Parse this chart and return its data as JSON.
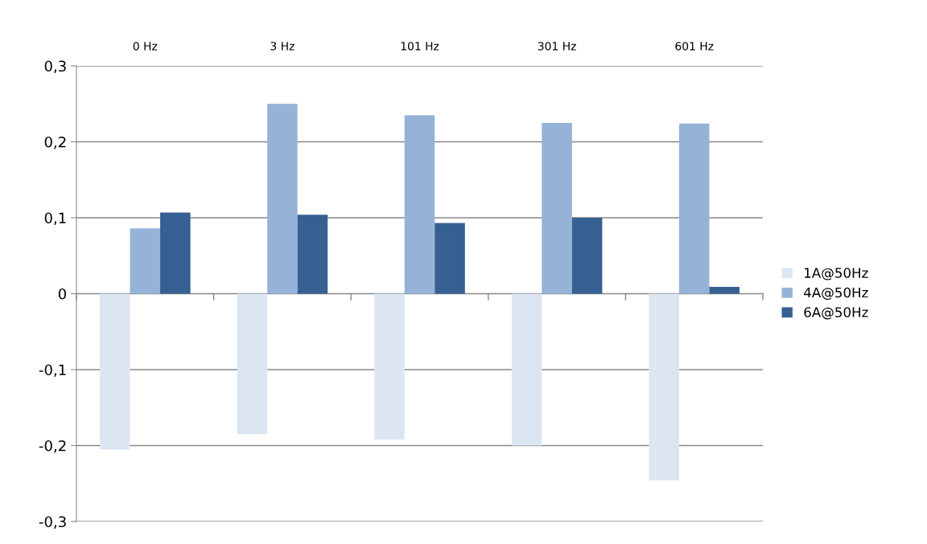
{
  "chart_data": {
    "type": "bar",
    "categories": [
      "0 Hz",
      "3 Hz",
      "101 Hz",
      "301 Hz",
      "601 Hz"
    ],
    "series": [
      {
        "name": "1A@50Hz",
        "color": "#dce6f2",
        "values": [
          -0.205,
          -0.185,
          -0.192,
          -0.2,
          -0.246
        ]
      },
      {
        "name": "4A@50Hz",
        "color": "#95b3d7",
        "values": [
          0.086,
          0.25,
          0.235,
          0.225,
          0.224
        ]
      },
      {
        "name": "6A@50Hz",
        "color": "#366092",
        "values": [
          0.107,
          0.104,
          0.093,
          0.1,
          0.009
        ]
      }
    ],
    "ylim": [
      -0.3,
      0.3
    ],
    "yticks": [
      {
        "value": -0.3,
        "label": "-0,3"
      },
      {
        "value": -0.2,
        "label": "-0,2"
      },
      {
        "value": -0.1,
        "label": "-0,1"
      },
      0,
      {
        "value": 0.1,
        "label": "0,1"
      },
      {
        "value": 0.2,
        "label": "0,2"
      },
      {
        "value": 0.3,
        "label": "0,3"
      }
    ],
    "grid": "y",
    "legend": "right"
  }
}
